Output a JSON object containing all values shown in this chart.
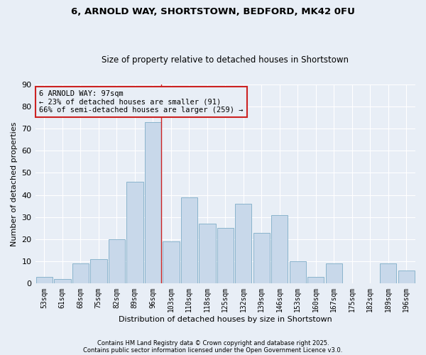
{
  "title_line1": "6, ARNOLD WAY, SHORTSTOWN, BEDFORD, MK42 0FU",
  "title_line2": "Size of property relative to detached houses in Shortstown",
  "xlabel": "Distribution of detached houses by size in Shortstown",
  "ylabel": "Number of detached properties",
  "bar_labels": [
    "53sqm",
    "61sqm",
    "68sqm",
    "75sqm",
    "82sqm",
    "89sqm",
    "96sqm",
    "103sqm",
    "110sqm",
    "118sqm",
    "125sqm",
    "132sqm",
    "139sqm",
    "146sqm",
    "153sqm",
    "160sqm",
    "167sqm",
    "175sqm",
    "182sqm",
    "189sqm",
    "196sqm"
  ],
  "bar_values": [
    3,
    2,
    9,
    11,
    20,
    46,
    73,
    19,
    39,
    27,
    25,
    36,
    23,
    31,
    10,
    3,
    9,
    0,
    0,
    9,
    6
  ],
  "bar_color": "#c8d8ea",
  "bar_edgecolor": "#8ab4cc",
  "background_color": "#e8eef6",
  "grid_color": "#ffffff",
  "vline_color": "#cc2222",
  "annotation_text": "6 ARNOLD WAY: 97sqm\n← 23% of detached houses are smaller (91)\n66% of semi-detached houses are larger (259) →",
  "annotation_box_edgecolor": "#cc2222",
  "ylim": [
    0,
    90
  ],
  "yticks": [
    0,
    10,
    20,
    30,
    40,
    50,
    60,
    70,
    80,
    90
  ],
  "footnote_line1": "Contains HM Land Registry data © Crown copyright and database right 2025.",
  "footnote_line2": "Contains public sector information licensed under the Open Government Licence v3.0."
}
